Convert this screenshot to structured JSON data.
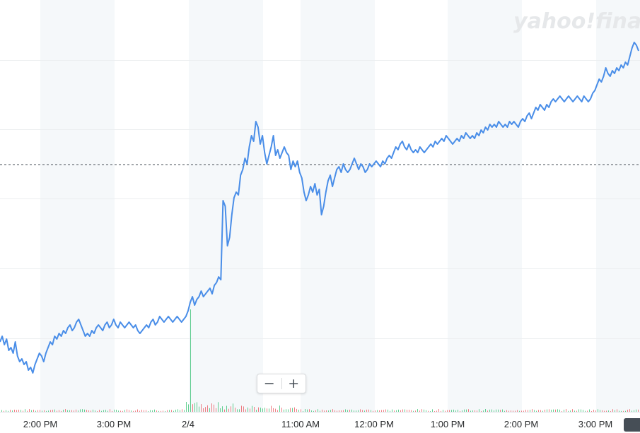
{
  "logo": {
    "text": "yahoo!finance"
  },
  "zoom": {
    "minus_label": "−",
    "plus_label": "+"
  },
  "chart_data": {
    "type": "line",
    "x_tick_labels": [
      "2:00 PM",
      "3:00 PM",
      "2/4",
      "11:00 AM",
      "12:00 PM",
      "1:00 PM",
      "2:00 PM",
      "3:00 PM"
    ],
    "previous_close_line": true,
    "grid": true,
    "series_color": "#4a8ee8",
    "volume_up_color": "#2dbf6c",
    "volume_down_color": "#e8535a",
    "series": [
      {
        "values": [
          0.19,
          0.21,
          0.18,
          0.2,
          0.16,
          0.17,
          0.15,
          0.19,
          0.14,
          0.12,
          0.13,
          0.11,
          0.12,
          0.09,
          0.1,
          0.08,
          0.11,
          0.13,
          0.15,
          0.14,
          0.12,
          0.15,
          0.17,
          0.19,
          0.18,
          0.21,
          0.2,
          0.22,
          0.21,
          0.23,
          0.22,
          0.24,
          0.25,
          0.23,
          0.24,
          0.26,
          0.27,
          0.25,
          0.23,
          0.21,
          0.22,
          0.21,
          0.23,
          0.22,
          0.24,
          0.25,
          0.24,
          0.23,
          0.25,
          0.26,
          0.24,
          0.25,
          0.27,
          0.25,
          0.24,
          0.26,
          0.25,
          0.24,
          0.25,
          0.26,
          0.25,
          0.24,
          0.25,
          0.23,
          0.22,
          0.23,
          0.24,
          0.25,
          0.24,
          0.26,
          0.27,
          0.25,
          0.26,
          0.28,
          0.27,
          0.26,
          0.27,
          0.28,
          0.27,
          0.26,
          0.27,
          0.28,
          0.27,
          0.26,
          0.27,
          0.28,
          0.3,
          0.33,
          0.35,
          0.32,
          0.34,
          0.35,
          0.37,
          0.35,
          0.36,
          0.37,
          0.38,
          0.36,
          0.39,
          0.4,
          0.42,
          0.41,
          0.69,
          0.67,
          0.53,
          0.56,
          0.64,
          0.7,
          0.72,
          0.71,
          0.78,
          0.8,
          0.84,
          0.82,
          0.88,
          0.92,
          0.9,
          0.97,
          0.95,
          0.89,
          0.92,
          0.86,
          0.82,
          0.85,
          0.88,
          0.92,
          0.85,
          0.87,
          0.84,
          0.86,
          0.88,
          0.86,
          0.85,
          0.8,
          0.83,
          0.81,
          0.83,
          0.79,
          0.77,
          0.72,
          0.69,
          0.71,
          0.74,
          0.72,
          0.75,
          0.71,
          0.73,
          0.64,
          0.67,
          0.72,
          0.76,
          0.78,
          0.74,
          0.77,
          0.8,
          0.81,
          0.79,
          0.82,
          0.8,
          0.79,
          0.8,
          0.82,
          0.84,
          0.82,
          0.8,
          0.82,
          0.81,
          0.79,
          0.8,
          0.82,
          0.81,
          0.82,
          0.83,
          0.82,
          0.81,
          0.83,
          0.82,
          0.84,
          0.85,
          0.84,
          0.86,
          0.88,
          0.87,
          0.89,
          0.9,
          0.88,
          0.87,
          0.89,
          0.87,
          0.86,
          0.87,
          0.86,
          0.88,
          0.87,
          0.86,
          0.87,
          0.88,
          0.89,
          0.88,
          0.9,
          0.89,
          0.9,
          0.91,
          0.9,
          0.92,
          0.91,
          0.9,
          0.89,
          0.9,
          0.91,
          0.9,
          0.92,
          0.91,
          0.93,
          0.92,
          0.91,
          0.92,
          0.91,
          0.93,
          0.92,
          0.94,
          0.93,
          0.95,
          0.94,
          0.96,
          0.95,
          0.96,
          0.95,
          0.97,
          0.96,
          0.95,
          0.96,
          0.95,
          0.97,
          0.96,
          0.97,
          0.96,
          0.95,
          0.97,
          0.98,
          0.97,
          0.99,
          1.0,
          0.98,
          1.0,
          1.02,
          1.01,
          1.03,
          1.02,
          1.01,
          1.03,
          1.02,
          1.04,
          1.05,
          1.04,
          1.05,
          1.06,
          1.05,
          1.04,
          1.05,
          1.06,
          1.05,
          1.04,
          1.05,
          1.06,
          1.05,
          1.04,
          1.06,
          1.05,
          1.04,
          1.05,
          1.07,
          1.08,
          1.1,
          1.12,
          1.11,
          1.13,
          1.16,
          1.14,
          1.13,
          1.15,
          1.14,
          1.16,
          1.15,
          1.17,
          1.16,
          1.18,
          1.17,
          1.2,
          1.23,
          1.25,
          1.24,
          1.22
        ]
      }
    ],
    "previous_close_value": 0.72,
    "ylim": [
      0.0,
      1.3
    ]
  }
}
